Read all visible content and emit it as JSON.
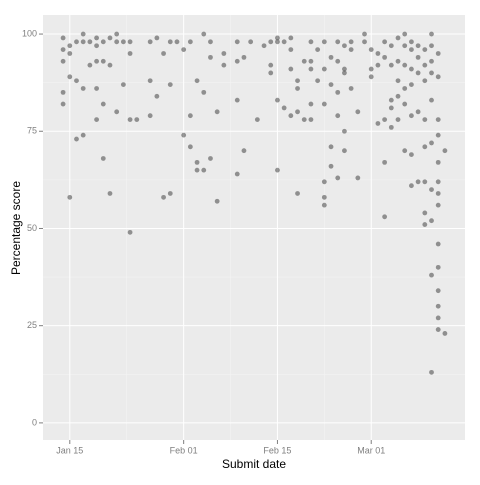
{
  "chart_data": {
    "type": "scatter",
    "x_label": "Submit date",
    "y_label": "Percentage score",
    "xlim": [
      "Jan 11",
      "Mar 15"
    ],
    "xticks": [
      "Jan 15",
      "Feb 01",
      "Feb 15",
      "Mar 01"
    ],
    "ylim": [
      -4.4,
      104.9
    ],
    "yticks": [
      0,
      25,
      50,
      75,
      100
    ],
    "grid": true,
    "color": "#333333",
    "x": [
      "Jan 14",
      "Jan 14",
      "Jan 14",
      "Jan 14",
      "Jan 14",
      "Jan 15",
      "Jan 15",
      "Jan 15",
      "Jan 15",
      "Jan 16",
      "Jan 16",
      "Jan 16",
      "Jan 17",
      "Jan 17",
      "Jan 17",
      "Jan 17",
      "Jan 18",
      "Jan 18",
      "Jan 19",
      "Jan 19",
      "Jan 19",
      "Jan 19",
      "Jan 19",
      "Jan 20",
      "Jan 20",
      "Jan 20",
      "Jan 20",
      "Jan 21",
      "Jan 21",
      "Jan 21",
      "Jan 22",
      "Jan 22",
      "Jan 22",
      "Jan 23",
      "Jan 23",
      "Jan 24",
      "Jan 24",
      "Jan 24",
      "Jan 24",
      "Jan 25",
      "Jan 27",
      "Jan 27",
      "Jan 27",
      "Jan 28",
      "Jan 28",
      "Jan 29",
      "Jan 29",
      "Jan 30",
      "Jan 30",
      "Jan 30",
      "Jan 31",
      "Feb 01",
      "Feb 01",
      "Feb 02",
      "Feb 02",
      "Feb 02",
      "Feb 03",
      "Feb 03",
      "Feb 03",
      "Feb 04",
      "Feb 04",
      "Feb 04",
      "Feb 05",
      "Feb 05",
      "Feb 05",
      "Feb 06",
      "Feb 06",
      "Feb 07",
      "Feb 07",
      "Feb 09",
      "Feb 09",
      "Feb 09",
      "Feb 09",
      "Feb 10",
      "Feb 10",
      "Feb 11",
      "Feb 12",
      "Feb 13",
      "Feb 14",
      "Feb 14",
      "Feb 14",
      "Feb 15",
      "Feb 15",
      "Feb 15",
      "Feb 15",
      "Feb 16",
      "Feb 16",
      "Feb 17",
      "Feb 17",
      "Feb 17",
      "Feb 17",
      "Feb 18",
      "Feb 18",
      "Feb 18",
      "Feb 18",
      "Feb 19",
      "Feb 19",
      "Feb 20",
      "Feb 20",
      "Feb 20",
      "Feb 20",
      "Feb 20",
      "Feb 21",
      "Feb 21",
      "Feb 22",
      "Feb 22",
      "Feb 22",
      "Feb 22",
      "Feb 22",
      "Feb 22",
      "Feb 23",
      "Feb 23",
      "Feb 23",
      "Feb 23",
      "Feb 24",
      "Feb 24",
      "Feb 24",
      "Feb 24",
      "Feb 24",
      "Feb 25",
      "Feb 25",
      "Feb 25",
      "Feb 25",
      "Feb 25",
      "Feb 26",
      "Feb 26",
      "Feb 26",
      "Feb 27",
      "Feb 27",
      "Feb 28",
      "Feb 28",
      "Mar 01",
      "Mar 01",
      "Mar 01",
      "Mar 02",
      "Mar 02",
      "Mar 02",
      "Mar 03",
      "Mar 03",
      "Mar 03",
      "Mar 03",
      "Mar 03",
      "Mar 04",
      "Mar 04",
      "Mar 04",
      "Mar 04",
      "Mar 04",
      "Mar 05",
      "Mar 05",
      "Mar 05",
      "Mar 05",
      "Mar 05",
      "Mar 06",
      "Mar 06",
      "Mar 06",
      "Mar 06",
      "Mar 06",
      "Mar 06",
      "Mar 07",
      "Mar 07",
      "Mar 07",
      "Mar 07",
      "Mar 07",
      "Mar 07",
      "Mar 07",
      "Mar 08",
      "Mar 08",
      "Mar 08",
      "Mar 08",
      "Mar 08",
      "Mar 09",
      "Mar 09",
      "Mar 09",
      "Mar 09",
      "Mar 09",
      "Mar 09",
      "Mar 09",
      "Mar 09",
      "Mar 10",
      "Mar 10",
      "Mar 10",
      "Mar 10",
      "Mar 10",
      "Mar 10",
      "Mar 10",
      "Mar 10",
      "Mar 10",
      "Mar 10",
      "Mar 11",
      "Mar 11",
      "Mar 11",
      "Mar 11",
      "Mar 11",
      "Mar 11",
      "Mar 11",
      "Mar 11",
      "Mar 11",
      "Mar 11",
      "Mar 11",
      "Mar 11",
      "Mar 11",
      "Mar 11",
      "Mar 12",
      "Mar 12"
    ],
    "values": [
      99,
      96,
      93,
      85,
      82,
      97,
      95,
      58,
      89,
      98,
      88,
      73,
      100,
      98,
      86,
      74,
      98,
      92,
      99,
      97,
      93,
      78,
      86,
      98,
      93,
      68,
      82,
      99,
      92,
      59,
      100,
      98,
      80,
      98,
      87,
      98,
      95,
      78,
      49,
      78,
      98,
      88,
      79,
      99,
      84,
      95,
      58,
      98,
      87,
      59,
      98,
      96,
      74,
      98,
      79,
      71,
      88,
      67,
      65,
      100,
      85,
      65,
      98,
      94,
      68,
      80,
      57,
      95,
      92,
      98,
      93,
      83,
      64,
      94,
      70,
      98,
      78,
      97,
      98,
      92,
      90,
      99,
      98,
      83,
      65,
      98,
      81,
      99,
      96,
      91,
      79,
      88,
      86,
      80,
      59,
      93,
      78,
      98,
      93,
      91,
      82,
      78,
      96,
      88,
      98,
      91,
      82,
      62,
      58,
      56,
      94,
      87,
      71,
      66,
      98,
      93,
      85,
      79,
      63,
      97,
      91,
      90,
      75,
      70,
      98,
      96,
      86,
      80,
      63,
      100,
      98,
      96,
      91,
      89,
      95,
      92,
      77,
      98,
      94,
      78,
      67,
      53,
      97,
      92,
      83,
      81,
      76,
      99,
      93,
      88,
      84,
      78,
      100,
      97,
      92,
      86,
      82,
      70,
      98,
      96,
      91,
      87,
      79,
      69,
      61,
      97,
      94,
      90,
      80,
      62,
      96,
      92,
      88,
      78,
      71,
      62,
      54,
      51,
      100,
      97,
      93,
      90,
      83,
      72,
      60,
      52,
      38,
      13,
      95,
      89,
      78,
      74,
      67,
      59,
      56,
      46,
      40,
      34,
      30,
      27,
      24,
      62,
      70,
      23
    ]
  }
}
